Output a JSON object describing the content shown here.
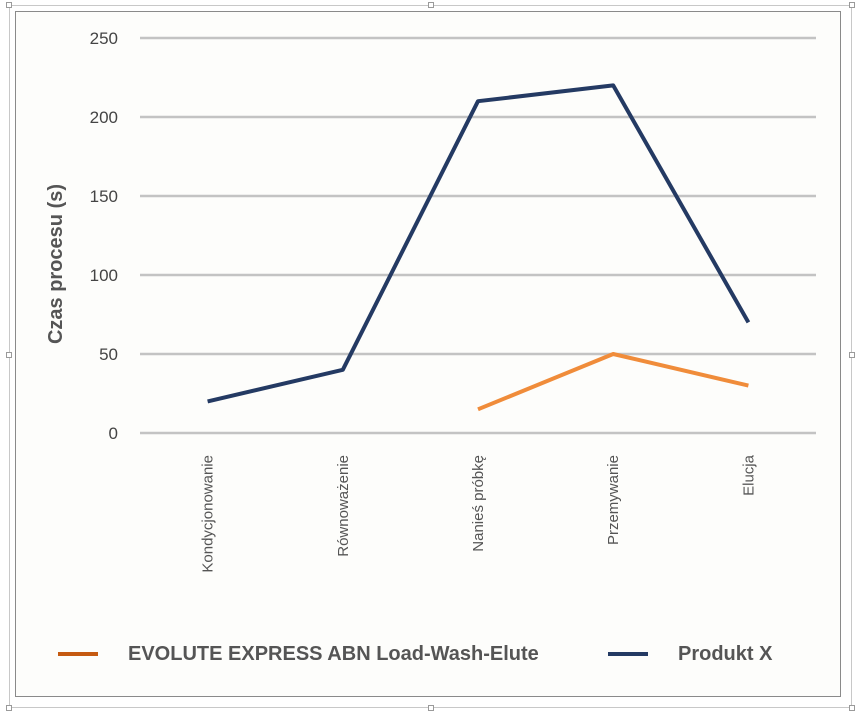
{
  "chart_data": {
    "type": "line",
    "categories": [
      "Kondycjonowanie",
      "Równoważenie",
      "Nanieś próbkę",
      "Przemywanie",
      "Elucja"
    ],
    "series": [
      {
        "name": "EVOLUTE EXPRESS ABN Load-Wash-Elute",
        "color": "#f08c3a",
        "legend_color": "#c55a11",
        "values": [
          null,
          null,
          15,
          50,
          30
        ]
      },
      {
        "name": "Produkt X",
        "color": "#243a63",
        "legend_color": "#243a63",
        "values": [
          20,
          40,
          210,
          220,
          70
        ]
      }
    ],
    "title": "",
    "xlabel": "",
    "ylabel": "Czas procesu (s)",
    "ylim": [
      0,
      250
    ],
    "yticks": [
      0,
      50,
      100,
      150,
      200,
      250
    ],
    "grid": true,
    "legend_position": "bottom"
  }
}
